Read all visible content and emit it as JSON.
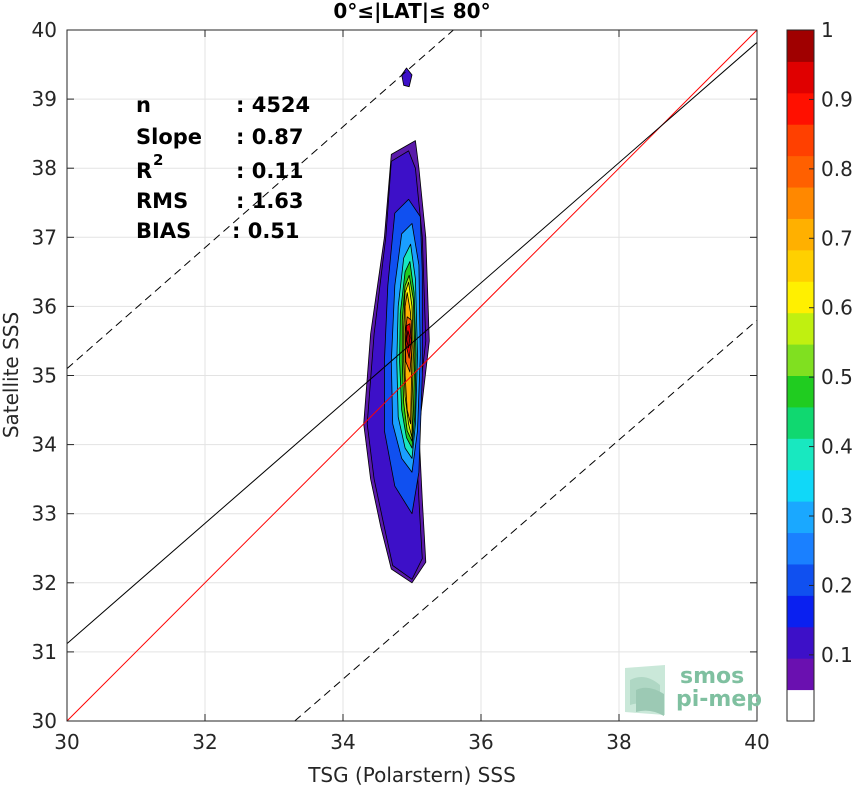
{
  "chart_data": {
    "type": "contour-scatter",
    "title": "0°≤|LAT|≤ 80°",
    "xlabel": "TSG (Polarstern) SSS",
    "ylabel": "Satellite SSS",
    "xlim": [
      30,
      40
    ],
    "ylim": [
      30,
      40
    ],
    "xticks": [
      "30",
      "32",
      "34",
      "36",
      "38",
      "40"
    ],
    "yticks": [
      "30",
      "31",
      "32",
      "33",
      "34",
      "35",
      "36",
      "37",
      "38",
      "39",
      "40"
    ],
    "grid": true,
    "stats": [
      {
        "label": "n",
        "value": ": 4524"
      },
      {
        "label": "Slope",
        "value": ": 0.87"
      },
      {
        "label": "R",
        "sup": "2",
        "value": ": 0.11"
      },
      {
        "label": "RMS",
        "value": ": 1.63"
      },
      {
        "label": "BIAS",
        "value": ": 0.51"
      }
    ],
    "reference_lines": [
      {
        "name": "identity",
        "color": "#ff0000",
        "style": "solid",
        "points": [
          [
            30,
            30
          ],
          [
            40,
            40
          ]
        ]
      },
      {
        "name": "fit",
        "color": "#000000",
        "style": "solid",
        "points": [
          [
            30,
            31.12
          ],
          [
            40,
            39.82
          ]
        ]
      },
      {
        "name": "upper",
        "color": "#000000",
        "style": "dashed",
        "points": [
          [
            30,
            35.1
          ],
          [
            35.6,
            40.0
          ]
        ]
      },
      {
        "name": "lower",
        "color": "#000000",
        "style": "dashed",
        "points": [
          [
            33.3,
            30.0
          ],
          [
            40,
            35.8
          ]
        ]
      }
    ],
    "contours": [
      {
        "level": 0.05,
        "color": "#5a1aaa",
        "points": [
          [
            35.0,
            32.0
          ],
          [
            35.2,
            32.3
          ],
          [
            35.15,
            33.2
          ],
          [
            35.1,
            34.2
          ],
          [
            35.25,
            35.5
          ],
          [
            35.2,
            37.0
          ],
          [
            35.1,
            38.0
          ],
          [
            35.05,
            38.4
          ],
          [
            34.7,
            38.2
          ],
          [
            34.6,
            37.0
          ],
          [
            34.4,
            35.6
          ],
          [
            34.3,
            34.3
          ],
          [
            34.4,
            33.5
          ],
          [
            34.55,
            32.8
          ],
          [
            34.7,
            32.2
          ]
        ]
      },
      {
        "level": 0.08,
        "color": "#3d10c8",
        "points": [
          [
            35.0,
            32.05
          ],
          [
            35.15,
            32.35
          ],
          [
            35.1,
            33.2
          ],
          [
            35.05,
            34.2
          ],
          [
            35.2,
            35.5
          ],
          [
            35.15,
            37.0
          ],
          [
            35.05,
            38.0
          ],
          [
            34.95,
            38.25
          ],
          [
            34.7,
            38.1
          ],
          [
            34.62,
            37.0
          ],
          [
            34.45,
            35.6
          ],
          [
            34.35,
            34.3
          ],
          [
            34.45,
            33.5
          ],
          [
            34.6,
            32.8
          ],
          [
            34.72,
            32.25
          ]
        ]
      },
      {
        "level": 0.2,
        "color": "#1050f0",
        "points": [
          [
            35.0,
            33.0
          ],
          [
            35.1,
            33.6
          ],
          [
            35.15,
            35.0
          ],
          [
            35.15,
            36.5
          ],
          [
            35.12,
            37.3
          ],
          [
            34.95,
            37.55
          ],
          [
            34.75,
            37.35
          ],
          [
            34.65,
            36.3
          ],
          [
            34.6,
            35.2
          ],
          [
            34.6,
            34.2
          ],
          [
            34.75,
            33.4
          ]
        ]
      },
      {
        "level": 0.3,
        "color": "#1a9fff",
        "points": [
          [
            35.0,
            33.6
          ],
          [
            35.08,
            34.2
          ],
          [
            35.12,
            35.3
          ],
          [
            35.1,
            36.6
          ],
          [
            35.0,
            37.2
          ],
          [
            34.85,
            37.05
          ],
          [
            34.75,
            36.3
          ],
          [
            34.7,
            35.2
          ],
          [
            34.72,
            34.3
          ],
          [
            34.85,
            33.8
          ]
        ]
      },
      {
        "level": 0.4,
        "color": "#18e8c0",
        "points": [
          [
            35.0,
            33.8
          ],
          [
            35.05,
            34.3
          ],
          [
            35.08,
            35.3
          ],
          [
            35.05,
            36.4
          ],
          [
            34.98,
            36.9
          ],
          [
            34.88,
            36.7
          ],
          [
            34.8,
            36.0
          ],
          [
            34.78,
            35.2
          ],
          [
            34.8,
            34.4
          ],
          [
            34.9,
            33.95
          ]
        ]
      },
      {
        "level": 0.5,
        "color": "#20cc20",
        "points": [
          [
            35.0,
            33.95
          ],
          [
            35.04,
            34.4
          ],
          [
            35.06,
            35.3
          ],
          [
            35.03,
            36.2
          ],
          [
            34.97,
            36.65
          ],
          [
            34.9,
            36.5
          ],
          [
            34.83,
            35.9
          ],
          [
            34.82,
            35.2
          ],
          [
            34.85,
            34.5
          ],
          [
            34.92,
            34.1
          ]
        ]
      },
      {
        "level": 0.6,
        "color": "#aaee10",
        "points": [
          [
            35.0,
            34.05
          ],
          [
            35.02,
            34.5
          ],
          [
            35.04,
            35.3
          ],
          [
            35.02,
            36.1
          ],
          [
            34.96,
            36.45
          ],
          [
            34.9,
            36.3
          ],
          [
            34.86,
            35.8
          ],
          [
            34.86,
            35.2
          ],
          [
            34.88,
            34.6
          ],
          [
            34.93,
            34.2
          ]
        ]
      },
      {
        "level": 0.65,
        "color": "#fff000",
        "points": [
          [
            35.0,
            34.1
          ],
          [
            35.0,
            34.6
          ],
          [
            35.02,
            35.3
          ],
          [
            35.0,
            36.0
          ],
          [
            34.95,
            36.35
          ],
          [
            34.9,
            36.2
          ],
          [
            34.88,
            35.7
          ],
          [
            34.88,
            35.2
          ],
          [
            34.9,
            34.7
          ],
          [
            34.95,
            34.3
          ]
        ]
      },
      {
        "level": 0.7,
        "color": "#ffb000",
        "points": [
          [
            34.98,
            34.3
          ],
          [
            34.99,
            34.8
          ],
          [
            35.0,
            35.3
          ],
          [
            34.98,
            35.9
          ],
          [
            34.93,
            36.2
          ],
          [
            34.9,
            36.0
          ],
          [
            34.9,
            35.5
          ],
          [
            34.9,
            35.0
          ],
          [
            34.93,
            34.5
          ]
        ]
      },
      {
        "level": 0.8,
        "color": "#ff6000",
        "points": [
          [
            34.97,
            35.05
          ],
          [
            35.0,
            35.4
          ],
          [
            34.99,
            35.8
          ],
          [
            34.93,
            35.85
          ],
          [
            34.9,
            35.6
          ],
          [
            34.91,
            35.2
          ]
        ]
      },
      {
        "level": 0.9,
        "color": "#ee0000",
        "points": [
          [
            34.96,
            35.25
          ],
          [
            34.99,
            35.5
          ],
          [
            34.97,
            35.75
          ],
          [
            34.92,
            35.72
          ],
          [
            34.91,
            35.45
          ]
        ]
      },
      {
        "level": 1.0,
        "color": "#b00000",
        "points": [
          [
            34.95,
            35.4
          ],
          [
            34.97,
            35.55
          ],
          [
            34.94,
            35.65
          ],
          [
            34.92,
            35.52
          ]
        ]
      },
      {
        "level": 0.05,
        "color": "#3d10c8",
        "points": [
          [
            34.85,
            39.35
          ],
          [
            34.92,
            39.45
          ],
          [
            35.0,
            39.35
          ],
          [
            34.96,
            39.18
          ],
          [
            34.88,
            39.2
          ]
        ]
      }
    ],
    "colorbar": {
      "ticks": [
        "0.1",
        "0.2",
        "0.3",
        "0.4",
        "0.5",
        "0.6",
        "0.7",
        "0.8",
        "0.9",
        "1"
      ],
      "colors": [
        "#ffffff",
        "#6a10b0",
        "#3d10c8",
        "#0a20f0",
        "#1050f0",
        "#1a80ff",
        "#1aa8ff",
        "#10d8f8",
        "#18e8c0",
        "#10d870",
        "#20cc20",
        "#80e020",
        "#c0f010",
        "#fff000",
        "#ffd000",
        "#ffb000",
        "#ff8800",
        "#ff6000",
        "#ff4000",
        "#ff1000",
        "#e00000",
        "#a00000"
      ]
    },
    "logo": {
      "line1": "smos",
      "line2": "pi-mep"
    }
  }
}
